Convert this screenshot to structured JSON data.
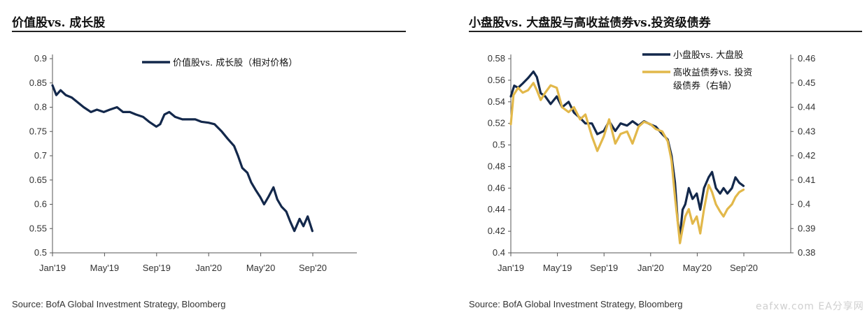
{
  "charts": [
    {
      "title": "价值股vs. 成长股",
      "source": "Source: BofA Global Investment Strategy, Bloomberg"
    },
    {
      "title": "小盘股vs. 大盘股与高收益债券vs.投资级债券",
      "source": "Source: BofA Global Investment Strategy, Bloomberg"
    }
  ],
  "watermark": "eafxw.com  EA分享网",
  "colors": {
    "navy": "#13284b",
    "gold": "#e2b84a",
    "axis": "#555555"
  },
  "chart_data": [
    {
      "type": "line",
      "title": "价值股vs. 成长股",
      "x_ticks": [
        "Jan'19",
        "May'19",
        "Sep'19",
        "Jan'20",
        "May'20",
        "Sep'20"
      ],
      "ylim": [
        0.5,
        0.9
      ],
      "y_ticks": [
        "0.9",
        "0.85",
        "0.8",
        "0.75",
        "0.7",
        "0.65",
        "0.6",
        "0.55",
        "0.5"
      ],
      "grid": false,
      "legend_position": "top-right",
      "series": [
        {
          "name": "价值股vs. 成长股（相对价格）",
          "color": "#13284b",
          "points": [
            [
              "2019-01-01",
              0.845
            ],
            [
              "2019-01-10",
              0.825
            ],
            [
              "2019-01-20",
              0.835
            ],
            [
              "2019-02-01",
              0.825
            ],
            [
              "2019-02-15",
              0.82
            ],
            [
              "2019-03-01",
              0.81
            ],
            [
              "2019-03-15",
              0.8
            ],
            [
              "2019-04-01",
              0.79
            ],
            [
              "2019-04-15",
              0.795
            ],
            [
              "2019-05-01",
              0.79
            ],
            [
              "2019-05-15",
              0.795
            ],
            [
              "2019-06-01",
              0.8
            ],
            [
              "2019-06-15",
              0.79
            ],
            [
              "2019-07-01",
              0.79
            ],
            [
              "2019-07-15",
              0.785
            ],
            [
              "2019-08-01",
              0.78
            ],
            [
              "2019-08-15",
              0.77
            ],
            [
              "2019-09-01",
              0.76
            ],
            [
              "2019-09-10",
              0.765
            ],
            [
              "2019-09-20",
              0.785
            ],
            [
              "2019-10-01",
              0.79
            ],
            [
              "2019-10-15",
              0.78
            ],
            [
              "2019-11-01",
              0.775
            ],
            [
              "2019-11-15",
              0.775
            ],
            [
              "2019-12-01",
              0.775
            ],
            [
              "2019-12-15",
              0.77
            ],
            [
              "2020-01-01",
              0.768
            ],
            [
              "2020-01-15",
              0.765
            ],
            [
              "2020-02-01",
              0.75
            ],
            [
              "2020-02-15",
              0.735
            ],
            [
              "2020-03-01",
              0.72
            ],
            [
              "2020-03-10",
              0.7
            ],
            [
              "2020-03-20",
              0.675
            ],
            [
              "2020-04-01",
              0.665
            ],
            [
              "2020-04-10",
              0.645
            ],
            [
              "2020-04-20",
              0.63
            ],
            [
              "2020-05-01",
              0.615
            ],
            [
              "2020-05-10",
              0.6
            ],
            [
              "2020-05-20",
              0.615
            ],
            [
              "2020-06-01",
              0.635
            ],
            [
              "2020-06-10",
              0.61
            ],
            [
              "2020-06-20",
              0.595
            ],
            [
              "2020-07-01",
              0.585
            ],
            [
              "2020-07-10",
              0.565
            ],
            [
              "2020-07-20",
              0.545
            ],
            [
              "2020-08-01",
              0.57
            ],
            [
              "2020-08-10",
              0.555
            ],
            [
              "2020-08-20",
              0.575
            ],
            [
              "2020-08-31",
              0.545
            ]
          ]
        }
      ]
    },
    {
      "type": "line",
      "title": "小盘股vs. 大盘股与高收益债券vs.投资级债券",
      "x_ticks": [
        "Jan'19",
        "May'19",
        "Sep'19",
        "Jan'20",
        "May'20",
        "Sep'20"
      ],
      "ylim": [
        0.4,
        0.58
      ],
      "y_ticks": [
        "0.58",
        "0.56",
        "0.54",
        "0.52",
        "0.5",
        "0.48",
        "0.46",
        "0.44",
        "0.42",
        "0.4"
      ],
      "y2lim": [
        0.38,
        0.46
      ],
      "y2_ticks": [
        "0.46",
        "0.45",
        "0.44",
        "0.43",
        "0.42",
        "0.41",
        "0.4",
        "0.39",
        "0.38"
      ],
      "grid": false,
      "legend_position": "top-right",
      "series": [
        {
          "name": "小盘股vs. 大盘股",
          "axis": "left",
          "color": "#13284b",
          "points": [
            [
              "2019-01-01",
              0.545
            ],
            [
              "2019-01-10",
              0.555
            ],
            [
              "2019-01-20",
              0.553
            ],
            [
              "2019-02-01",
              0.557
            ],
            [
              "2019-02-15",
              0.562
            ],
            [
              "2019-03-01",
              0.568
            ],
            [
              "2019-03-10",
              0.563
            ],
            [
              "2019-03-20",
              0.548
            ],
            [
              "2019-04-01",
              0.545
            ],
            [
              "2019-04-15",
              0.538
            ],
            [
              "2019-05-01",
              0.545
            ],
            [
              "2019-05-15",
              0.535
            ],
            [
              "2019-06-01",
              0.54
            ],
            [
              "2019-06-15",
              0.53
            ],
            [
              "2019-07-01",
              0.525
            ],
            [
              "2019-07-15",
              0.52
            ],
            [
              "2019-08-01",
              0.52
            ],
            [
              "2019-08-15",
              0.51
            ],
            [
              "2019-09-01",
              0.513
            ],
            [
              "2019-09-15",
              0.522
            ],
            [
              "2019-10-01",
              0.513
            ],
            [
              "2019-10-15",
              0.52
            ],
            [
              "2019-11-01",
              0.518
            ],
            [
              "2019-11-15",
              0.522
            ],
            [
              "2019-12-01",
              0.518
            ],
            [
              "2019-12-15",
              0.522
            ],
            [
              "2020-01-01",
              0.519
            ],
            [
              "2020-01-15",
              0.517
            ],
            [
              "2020-02-01",
              0.51
            ],
            [
              "2020-02-15",
              0.505
            ],
            [
              "2020-02-25",
              0.49
            ],
            [
              "2020-03-05",
              0.465
            ],
            [
              "2020-03-12",
              0.43
            ],
            [
              "2020-03-18",
              0.415
            ],
            [
              "2020-03-25",
              0.44
            ],
            [
              "2020-04-01",
              0.445
            ],
            [
              "2020-04-10",
              0.46
            ],
            [
              "2020-04-20",
              0.45
            ],
            [
              "2020-05-01",
              0.455
            ],
            [
              "2020-05-10",
              0.44
            ],
            [
              "2020-05-20",
              0.46
            ],
            [
              "2020-06-01",
              0.47
            ],
            [
              "2020-06-10",
              0.475
            ],
            [
              "2020-06-20",
              0.46
            ],
            [
              "2020-07-01",
              0.455
            ],
            [
              "2020-07-10",
              0.46
            ],
            [
              "2020-07-20",
              0.455
            ],
            [
              "2020-08-01",
              0.46
            ],
            [
              "2020-08-10",
              0.47
            ],
            [
              "2020-08-20",
              0.465
            ],
            [
              "2020-08-31",
              0.462
            ]
          ]
        },
        {
          "name": "高收益债券vs. 投资级债券（右轴）",
          "axis": "right",
          "color": "#e2b84a",
          "points": [
            [
              "2019-01-01",
              0.433
            ],
            [
              "2019-01-08",
              0.445
            ],
            [
              "2019-01-20",
              0.448
            ],
            [
              "2019-02-01",
              0.446
            ],
            [
              "2019-02-15",
              0.447
            ],
            [
              "2019-03-01",
              0.45
            ],
            [
              "2019-03-10",
              0.447
            ],
            [
              "2019-03-20",
              0.443
            ],
            [
              "2019-04-01",
              0.446
            ],
            [
              "2019-04-15",
              0.449
            ],
            [
              "2019-05-01",
              0.448
            ],
            [
              "2019-05-15",
              0.44
            ],
            [
              "2019-06-01",
              0.438
            ],
            [
              "2019-06-15",
              0.44
            ],
            [
              "2019-07-01",
              0.435
            ],
            [
              "2019-07-15",
              0.437
            ],
            [
              "2019-08-01",
              0.428
            ],
            [
              "2019-08-15",
              0.422
            ],
            [
              "2019-09-01",
              0.428
            ],
            [
              "2019-09-15",
              0.435
            ],
            [
              "2019-10-01",
              0.425
            ],
            [
              "2019-10-15",
              0.429
            ],
            [
              "2019-11-01",
              0.43
            ],
            [
              "2019-11-15",
              0.425
            ],
            [
              "2019-12-01",
              0.432
            ],
            [
              "2019-12-15",
              0.434
            ],
            [
              "2020-01-01",
              0.433
            ],
            [
              "2020-01-15",
              0.431
            ],
            [
              "2020-02-01",
              0.43
            ],
            [
              "2020-02-15",
              0.426
            ],
            [
              "2020-02-25",
              0.418
            ],
            [
              "2020-03-05",
              0.403
            ],
            [
              "2020-03-12",
              0.393
            ],
            [
              "2020-03-18",
              0.384
            ],
            [
              "2020-03-25",
              0.39
            ],
            [
              "2020-04-01",
              0.395
            ],
            [
              "2020-04-10",
              0.398
            ],
            [
              "2020-04-20",
              0.392
            ],
            [
              "2020-05-01",
              0.395
            ],
            [
              "2020-05-10",
              0.388
            ],
            [
              "2020-05-20",
              0.398
            ],
            [
              "2020-06-01",
              0.408
            ],
            [
              "2020-06-10",
              0.405
            ],
            [
              "2020-06-20",
              0.4
            ],
            [
              "2020-07-01",
              0.397
            ],
            [
              "2020-07-10",
              0.395
            ],
            [
              "2020-07-20",
              0.398
            ],
            [
              "2020-08-01",
              0.4
            ],
            [
              "2020-08-10",
              0.403
            ],
            [
              "2020-08-20",
              0.405
            ],
            [
              "2020-08-31",
              0.406
            ]
          ]
        }
      ]
    }
  ]
}
